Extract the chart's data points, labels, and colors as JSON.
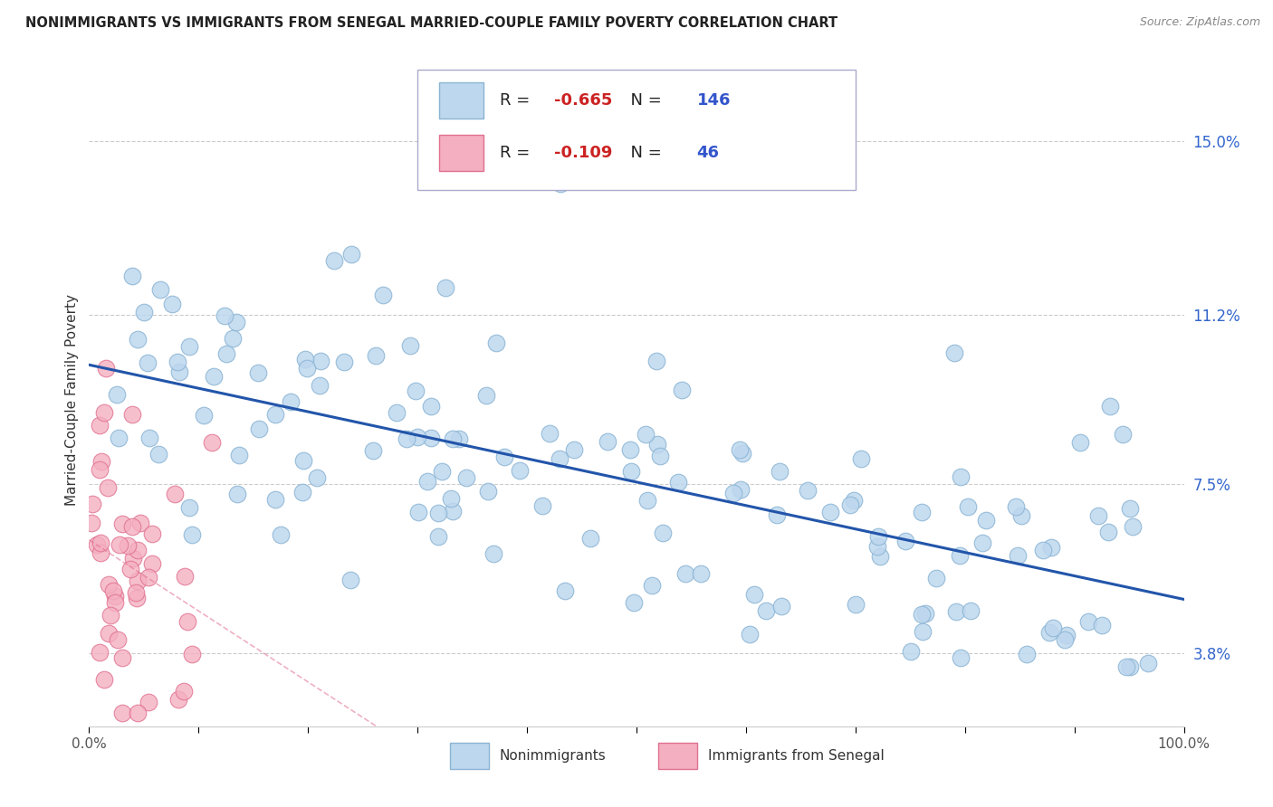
{
  "title": "NONIMMIGRANTS VS IMMIGRANTS FROM SENEGAL MARRIED-COUPLE FAMILY POVERTY CORRELATION CHART",
  "source": "Source: ZipAtlas.com",
  "ylabel": "Married-Couple Family Poverty",
  "xmin": 0.0,
  "xmax": 100.0,
  "ymin": 2.2,
  "ymax": 16.5,
  "yticks": [
    3.8,
    7.5,
    11.2,
    15.0
  ],
  "blue_R": -0.665,
  "blue_N": 146,
  "pink_R": -0.109,
  "pink_N": 46,
  "blue_color": "#bdd7ee",
  "blue_edge": "#8ab4d4",
  "pink_color": "#f4afc0",
  "pink_edge": "#e07090",
  "trend_blue": "#2255aa",
  "trend_pink": "#e07090",
  "legend_blue_label": "Nonimmigrants",
  "legend_pink_label": "Immigrants from Senegal",
  "blue_scatter_seed": 42,
  "pink_scatter_seed": 15,
  "background_color": "#ffffff",
  "grid_color": "#cccccc",
  "title_color": "#222222",
  "source_color": "#888888",
  "tick_color": "#555555",
  "right_tick_color": "#3366cc"
}
